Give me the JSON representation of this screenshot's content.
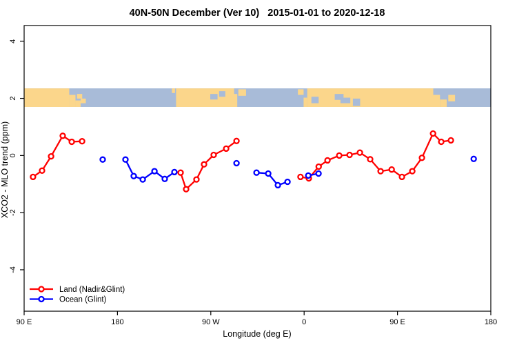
{
  "title": "40N-50N December (Ver 10)   2015-01-01 to 2020-12-18",
  "colors": {
    "land_series": "#ff0000",
    "ocean_series": "#0000ff",
    "map_land": "#fbd68b",
    "map_ocean": "#a8bbd8",
    "axis": "#000000",
    "background": "#ffffff"
  },
  "chart_data": {
    "type": "line",
    "title": "40N-50N December (Ver 10)   2015-01-01 to 2020-12-18",
    "xlabel": "Longitude (deg E)",
    "ylabel": "XCO2 - MLO trend (ppm)",
    "xlim": [
      90,
      540
    ],
    "ylim": [
      -5.45,
      4.55
    ],
    "grid": false,
    "x_ticks": [
      {
        "value": 90,
        "label": "90 E"
      },
      {
        "value": 180,
        "label": "180"
      },
      {
        "value": 270,
        "label": "90 W"
      },
      {
        "value": 360,
        "label": "0"
      },
      {
        "value": 450,
        "label": "90 E"
      },
      {
        "value": 540,
        "label": "180"
      }
    ],
    "y_ticks": [
      {
        "value": -4,
        "label": "-4"
      },
      {
        "value": -2,
        "label": "-2"
      },
      {
        "value": 0,
        "label": "0"
      },
      {
        "value": 2,
        "label": "2"
      },
      {
        "value": 4,
        "label": "4"
      }
    ],
    "legend": {
      "position": "bottom-left"
    },
    "series": [
      {
        "name": "Land (Nadir&Glint)",
        "color": "#ff0000",
        "marker": "open-circle",
        "groups": [
          [
            [
              98.6,
              -0.75
            ],
            [
              107.3,
              -0.53
            ],
            [
              116,
              -0.03
            ],
            [
              127.2,
              0.69
            ],
            [
              135.9,
              0.48
            ],
            [
              145.9,
              0.5
            ]
          ],
          [
            [
              240.9,
              -0.6
            ],
            [
              246.2,
              -1.18
            ],
            [
              256.2,
              -0.84
            ],
            [
              263.5,
              -0.31
            ],
            [
              272.8,
              0.02
            ],
            [
              284.8,
              0.24
            ],
            [
              294.8,
              0.51
            ]
          ],
          [
            [
              356.5,
              -0.75
            ],
            [
              364.5,
              -0.8
            ],
            [
              374,
              -0.39
            ],
            [
              382.5,
              -0.17
            ],
            [
              393.8,
              0.0
            ],
            [
              403.8,
              0.02
            ],
            [
              413.8,
              0.1
            ],
            [
              423.7,
              -0.13
            ],
            [
              433.7,
              -0.55
            ],
            [
              444.4,
              -0.49
            ],
            [
              454.3,
              -0.75
            ],
            [
              464.3,
              -0.55
            ],
            [
              473.6,
              -0.08
            ],
            [
              484.3,
              0.77
            ],
            [
              492.2,
              0.48
            ],
            [
              501.5,
              0.53
            ]
          ]
        ]
      },
      {
        "name": "Ocean (Glint)",
        "color": "#0000ff",
        "marker": "open-circle",
        "groups": [
          [
            [
              165.8,
              -0.14
            ]
          ],
          [
            [
              187.7,
              -0.14
            ],
            [
              195.7,
              -0.72
            ],
            [
              204.4,
              -0.84
            ],
            [
              215.7,
              -0.55
            ],
            [
              225.6,
              -0.82
            ],
            [
              234.9,
              -0.58
            ]
          ],
          [
            [
              294.8,
              -0.27
            ]
          ],
          [
            [
              314.1,
              -0.6
            ],
            [
              325.4,
              -0.63
            ],
            [
              334.7,
              -1.04
            ],
            [
              344.0,
              -0.92
            ]
          ],
          [
            [
              364.0,
              -0.7
            ],
            [
              373.9,
              -0.63
            ]
          ],
          [
            [
              523.5,
              -0.12
            ]
          ]
        ]
      }
    ],
    "map_strip": {
      "v_top": 2.35,
      "v_bottom": 1.7,
      "ocean_color": "#a8bbd8",
      "land_color": "#fbd68b",
      "ocean_extent": [
        90,
        540
      ],
      "land_segments": [
        [
          90,
          133.5,
          0,
          1
        ],
        [
          133.5,
          139.5,
          0.35,
          1
        ],
        [
          139.5,
          144.5,
          0.65,
          1
        ],
        [
          141,
          146,
          0.3,
          0.55
        ],
        [
          144.5,
          149.5,
          0.55,
          0.8
        ],
        [
          232.5,
          235.5,
          0,
          0.25
        ],
        [
          236.5,
          295.5,
          0,
          1
        ],
        [
          296.5,
          304,
          0.05,
          0.4
        ],
        [
          354,
          359.5,
          0.05,
          0.35
        ],
        [
          359.5,
          363,
          0.5,
          1
        ],
        [
          363,
          484.5,
          0,
          1
        ],
        [
          484.5,
          491,
          0.35,
          1
        ],
        [
          491,
          497.5,
          0.6,
          1
        ],
        [
          499,
          505.5,
          0.35,
          0.7
        ]
      ],
      "water_patches": [
        [
          269.5,
          276.5,
          0.3,
          0.6
        ],
        [
          278,
          284,
          0.15,
          0.45
        ],
        [
          292.5,
          296.5,
          0,
          0.3
        ],
        [
          367,
          374,
          0.45,
          0.8
        ],
        [
          389.5,
          398,
          0.3,
          0.62
        ],
        [
          395,
          404.5,
          0.5,
          0.8
        ],
        [
          407,
          414,
          0.55,
          0.95
        ]
      ]
    }
  }
}
